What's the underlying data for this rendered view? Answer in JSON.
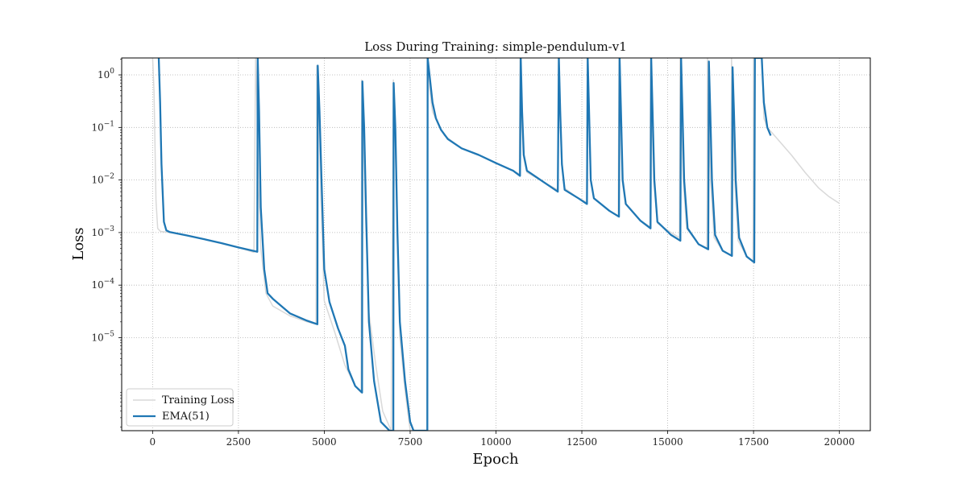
{
  "chart_data": {
    "type": "line",
    "title": "Loss During Training: simple-pendulum-v1",
    "xlabel": "Epoch",
    "ylabel": "Loss",
    "xlim": [
      -900,
      20900
    ],
    "ylim": [
      1.7e-07,
      2.1
    ],
    "yscale": "log",
    "x_ticks": [
      0,
      2500,
      5000,
      7500,
      10000,
      12500,
      15000,
      17500,
      20000
    ],
    "x_tick_labels": [
      "0",
      "2500",
      "5000",
      "7500",
      "10000",
      "12500",
      "15000",
      "17500",
      "20000"
    ],
    "y_ticks": [
      1,
      0.1,
      0.01,
      0.001,
      0.0001,
      1e-05
    ],
    "y_tick_labels": [
      {
        "base": "10",
        "exp": "0"
      },
      {
        "base": "10",
        "exp": "−1"
      },
      {
        "base": "10",
        "exp": "−2"
      },
      {
        "base": "10",
        "exp": "−3"
      },
      {
        "base": "10",
        "exp": "−4"
      },
      {
        "base": "10",
        "exp": "−5"
      }
    ],
    "grid": true,
    "legend_position": "bottom-left",
    "series": [
      {
        "name": "Training Loss",
        "color": "#d9d9d9",
        "points": [
          [
            0,
            2.1
          ],
          [
            40,
            0.5
          ],
          [
            70,
            0.05
          ],
          [
            100,
            0.004
          ],
          [
            150,
            0.0012
          ],
          [
            230,
            0.00105
          ],
          [
            500,
            0.001
          ],
          [
            1000,
            0.00088
          ],
          [
            1500,
            0.00075
          ],
          [
            2000,
            0.00063
          ],
          [
            2500,
            0.00052
          ],
          [
            2950,
            0.00042
          ],
          [
            3000,
            2.1
          ],
          [
            3040,
            0.3
          ],
          [
            3080,
            0.01
          ],
          [
            3150,
            0.0005
          ],
          [
            3300,
            7e-05
          ],
          [
            3500,
            4e-05
          ],
          [
            4000,
            2.6e-05
          ],
          [
            4500,
            2e-05
          ],
          [
            4760,
            1.8e-05
          ],
          [
            4780,
            1.5
          ],
          [
            4840,
            0.2
          ],
          [
            4900,
            0.005
          ],
          [
            5000,
            5e-05
          ],
          [
            5300,
            1.3e-05
          ],
          [
            5600,
            3e-06
          ],
          [
            5900,
            1.2e-06
          ],
          [
            6070,
            9e-07
          ],
          [
            6090,
            0.8
          ],
          [
            6140,
            0.1
          ],
          [
            6200,
            0.002
          ],
          [
            6300,
            3e-05
          ],
          [
            6500,
            3e-06
          ],
          [
            6700,
            4e-07
          ],
          [
            6950,
            1.7e-07
          ],
          [
            7010,
            0.8
          ],
          [
            7060,
            0.1
          ],
          [
            7120,
            0.001
          ],
          [
            7200,
            1e-05
          ],
          [
            7350,
            1e-06
          ],
          [
            7500,
            1.7e-07
          ],
          [
            7990,
            1.7e-07
          ],
          [
            8000,
            2.1
          ],
          [
            8070,
            0.5
          ],
          [
            8150,
            0.2
          ],
          [
            8300,
            0.12
          ],
          [
            8500,
            0.07
          ],
          [
            9000,
            0.04
          ],
          [
            9500,
            0.03
          ],
          [
            10000,
            0.021
          ],
          [
            10500,
            0.015
          ],
          [
            10680,
            0.013
          ],
          [
            10700,
            2.1
          ],
          [
            10740,
            0.2
          ],
          [
            10790,
            0.03
          ],
          [
            10900,
            0.014
          ],
          [
            11400,
            0.009
          ],
          [
            11800,
            0.0065
          ],
          [
            11820,
            2.1
          ],
          [
            11860,
            0.2
          ],
          [
            11910,
            0.02
          ],
          [
            12000,
            0.007
          ],
          [
            12400,
            0.0045
          ],
          [
            12640,
            0.0038
          ],
          [
            12660,
            2.1
          ],
          [
            12700,
            0.2
          ],
          [
            12750,
            0.01
          ],
          [
            12850,
            0.0045
          ],
          [
            13300,
            0.0026
          ],
          [
            13560,
            0.0021
          ],
          [
            13580,
            2.1
          ],
          [
            13620,
            0.2
          ],
          [
            13670,
            0.01
          ],
          [
            13770,
            0.0035
          ],
          [
            14200,
            0.0017
          ],
          [
            14480,
            0.0013
          ],
          [
            14500,
            2.1
          ],
          [
            14540,
            0.2
          ],
          [
            14590,
            0.01
          ],
          [
            14700,
            0.0015
          ],
          [
            15100,
            0.001
          ],
          [
            15340,
            0.0008
          ],
          [
            15360,
            2.1
          ],
          [
            15400,
            0.2
          ],
          [
            15450,
            0.01
          ],
          [
            15550,
            0.0012
          ],
          [
            15900,
            0.0006
          ],
          [
            16140,
            0.0005
          ],
          [
            16160,
            2.1
          ],
          [
            16200,
            0.2
          ],
          [
            16250,
            0.01
          ],
          [
            16350,
            0.0008
          ],
          [
            16600,
            0.00045
          ],
          [
            16840,
            0.00037
          ],
          [
            16860,
            2.1
          ],
          [
            16900,
            0.2
          ],
          [
            16950,
            0.01
          ],
          [
            17050,
            0.0007
          ],
          [
            17300,
            0.00035
          ],
          [
            17480,
            0.00028
          ],
          [
            17500,
            2.1
          ],
          [
            17650,
            2.1
          ],
          [
            17750,
            2.1
          ],
          [
            17800,
            0.15
          ],
          [
            17900,
            0.1
          ],
          [
            18200,
            0.06
          ],
          [
            18600,
            0.03
          ],
          [
            19000,
            0.014
          ],
          [
            19400,
            0.007
          ],
          [
            19700,
            0.0048
          ],
          [
            20000,
            0.0036
          ]
        ]
      },
      {
        "name": "EMA(51)",
        "color": "#1f77b4",
        "points": [
          [
            180,
            2.1
          ],
          [
            220,
            0.3
          ],
          [
            260,
            0.02
          ],
          [
            330,
            0.0016
          ],
          [
            400,
            0.0011
          ],
          [
            500,
            0.00102
          ],
          [
            1000,
            0.00088
          ],
          [
            1500,
            0.00075
          ],
          [
            2000,
            0.00063
          ],
          [
            2500,
            0.00052
          ],
          [
            3050,
            0.00043
          ],
          [
            3060,
            2.1
          ],
          [
            3100,
            0.2
          ],
          [
            3150,
            0.003
          ],
          [
            3250,
            0.0002
          ],
          [
            3350,
            7e-05
          ],
          [
            3500,
            5.5e-05
          ],
          [
            4000,
            2.9e-05
          ],
          [
            4500,
            2.1e-05
          ],
          [
            4800,
            1.8e-05
          ],
          [
            4810,
            1.5
          ],
          [
            4860,
            0.2
          ],
          [
            4920,
            0.01
          ],
          [
            5000,
            0.0002
          ],
          [
            5150,
            4.8e-05
          ],
          [
            5400,
            1.5e-05
          ],
          [
            5600,
            7e-06
          ],
          [
            5700,
            2.5e-06
          ],
          [
            5900,
            1.2e-06
          ],
          [
            6100,
            9e-07
          ],
          [
            6110,
            0.75
          ],
          [
            6160,
            0.1
          ],
          [
            6220,
            0.002
          ],
          [
            6300,
            2e-05
          ],
          [
            6450,
            1.5e-06
          ],
          [
            6650,
            2.5e-07
          ],
          [
            6900,
            1.7e-07
          ],
          [
            7010,
            1.7e-07
          ],
          [
            7020,
            0.7
          ],
          [
            7070,
            0.1
          ],
          [
            7130,
            0.001
          ],
          [
            7200,
            2e-05
          ],
          [
            7350,
            1.5e-06
          ],
          [
            7500,
            2.5e-07
          ],
          [
            7600,
            1.7e-07
          ],
          [
            8000,
            1.7e-07
          ],
          [
            8010,
            2.1
          ],
          [
            8080,
            0.8
          ],
          [
            8150,
            0.3
          ],
          [
            8250,
            0.15
          ],
          [
            8400,
            0.09
          ],
          [
            8600,
            0.06
          ],
          [
            9000,
            0.04
          ],
          [
            9500,
            0.03
          ],
          [
            10000,
            0.021
          ],
          [
            10500,
            0.015
          ],
          [
            10700,
            0.012
          ],
          [
            10720,
            2.1
          ],
          [
            10760,
            0.2
          ],
          [
            10810,
            0.03
          ],
          [
            10900,
            0.015
          ],
          [
            11400,
            0.009
          ],
          [
            11800,
            0.006
          ],
          [
            11830,
            2.1
          ],
          [
            11870,
            0.2
          ],
          [
            11920,
            0.02
          ],
          [
            12000,
            0.0065
          ],
          [
            12400,
            0.0045
          ],
          [
            12650,
            0.0035
          ],
          [
            12670,
            2.1
          ],
          [
            12710,
            0.2
          ],
          [
            12760,
            0.01
          ],
          [
            12850,
            0.0045
          ],
          [
            13300,
            0.0026
          ],
          [
            13580,
            0.002
          ],
          [
            13600,
            2.1
          ],
          [
            13640,
            0.2
          ],
          [
            13690,
            0.01
          ],
          [
            13780,
            0.0035
          ],
          [
            14200,
            0.0017
          ],
          [
            14500,
            0.0012
          ],
          [
            14520,
            2.1
          ],
          [
            14560,
            0.2
          ],
          [
            14610,
            0.01
          ],
          [
            14700,
            0.0016
          ],
          [
            15100,
            0.0009
          ],
          [
            15370,
            0.0007
          ],
          [
            15390,
            2.1
          ],
          [
            15430,
            0.2
          ],
          [
            15480,
            0.01
          ],
          [
            15580,
            0.0012
          ],
          [
            15900,
            0.0006
          ],
          [
            16180,
            0.00048
          ],
          [
            16200,
            1.8
          ],
          [
            16240,
            0.2
          ],
          [
            16290,
            0.01
          ],
          [
            16380,
            0.0009
          ],
          [
            16600,
            0.00045
          ],
          [
            16870,
            0.00036
          ],
          [
            16890,
            1.4
          ],
          [
            16930,
            0.2
          ],
          [
            16980,
            0.01
          ],
          [
            17080,
            0.0008
          ],
          [
            17300,
            0.00035
          ],
          [
            17520,
            0.00027
          ],
          [
            17540,
            2.1
          ],
          [
            17740,
            2.1
          ],
          [
            17800,
            0.3
          ],
          [
            17900,
            0.1
          ],
          [
            18000,
            0.07
          ]
        ]
      }
    ]
  }
}
